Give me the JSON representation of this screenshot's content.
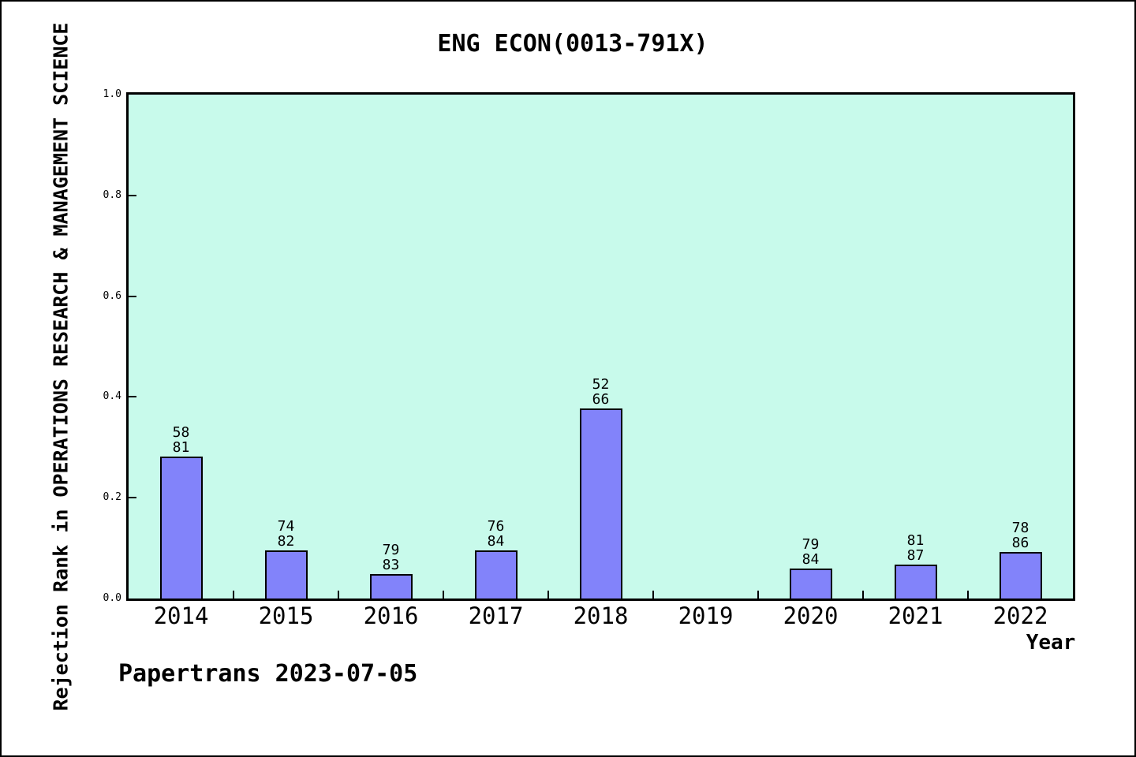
{
  "chart_data": {
    "type": "bar",
    "title": "ENG ECON(0013-791X)",
    "xlabel": "Year",
    "ylabel": "Rejection Rank in OPERATIONS RESEARCH & MANAGEMENT SCIENCE",
    "footer": "Papertrans 2023-07-05",
    "ylim": [
      0.0,
      1.0
    ],
    "ytick_labels": [
      "0.0",
      "0.2",
      "0.4",
      "0.6",
      "0.8",
      "1.0"
    ],
    "grid": false,
    "legend_position": "none",
    "categories": [
      "2014",
      "2015",
      "2016",
      "2017",
      "2018",
      "2019",
      "2020",
      "2021",
      "2022"
    ],
    "bars": [
      {
        "year": "2014",
        "label_top": "58",
        "label_bottom": "81",
        "height": 0.282
      },
      {
        "year": "2015",
        "label_top": "74",
        "label_bottom": "82",
        "height": 0.096
      },
      {
        "year": "2016",
        "label_top": "79",
        "label_bottom": "83",
        "height": 0.048
      },
      {
        "year": "2017",
        "label_top": "76",
        "label_bottom": "84",
        "height": 0.095
      },
      {
        "year": "2018",
        "label_top": "52",
        "label_bottom": "66",
        "height": 0.377
      },
      {
        "year": "2019",
        "label_top": null,
        "label_bottom": null,
        "height": 0
      },
      {
        "year": "2020",
        "label_top": "79",
        "label_bottom": "84",
        "height": 0.059
      },
      {
        "year": "2021",
        "label_top": "81",
        "label_bottom": "87",
        "height": 0.068
      },
      {
        "year": "2022",
        "label_top": "78",
        "label_bottom": "86",
        "height": 0.093
      }
    ],
    "colors": {
      "bar_fill": "#8283FA",
      "bar_border": "#000000",
      "plot_bg": "#C8FAEB",
      "page_bg": "#FFFFFF",
      "axis": "#000000"
    }
  }
}
